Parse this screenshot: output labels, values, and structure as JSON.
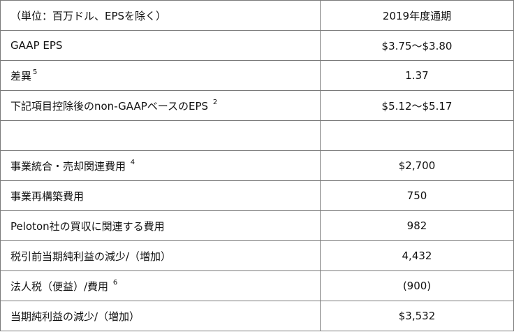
{
  "header": {
    "label": "（単位：百万ドル、EPSを除く）",
    "period": "2019年度通期"
  },
  "rows": [
    {
      "label": "GAAP EPS",
      "note": "",
      "value": "$3.75～$3.80"
    },
    {
      "label": "差異",
      "note": "5",
      "value": "1.37"
    },
    {
      "label": "下記項目控除後のnon-GAAPベースのEPS ",
      "note": "2",
      "value": "$5.12～$5.17"
    },
    {
      "label": "",
      "note": "",
      "value": ""
    },
    {
      "label": "事業統合・売却関連費用 ",
      "note": "4",
      "value": "$2,700"
    },
    {
      "label": "事業再構築費用",
      "note": "",
      "value": "750"
    },
    {
      "label": "Peloton社の買収に関連する費用",
      "note": "",
      "value": "982"
    },
    {
      "label": "税引前当期純利益の減少/（増加）",
      "note": "",
      "value": "4,432"
    },
    {
      "label": "法人税（便益）/費用 ",
      "note": "6",
      "value": "(900)"
    },
    {
      "label": "当期純利益の減少/（増加）",
      "note": "",
      "value": "$3,532"
    }
  ]
}
